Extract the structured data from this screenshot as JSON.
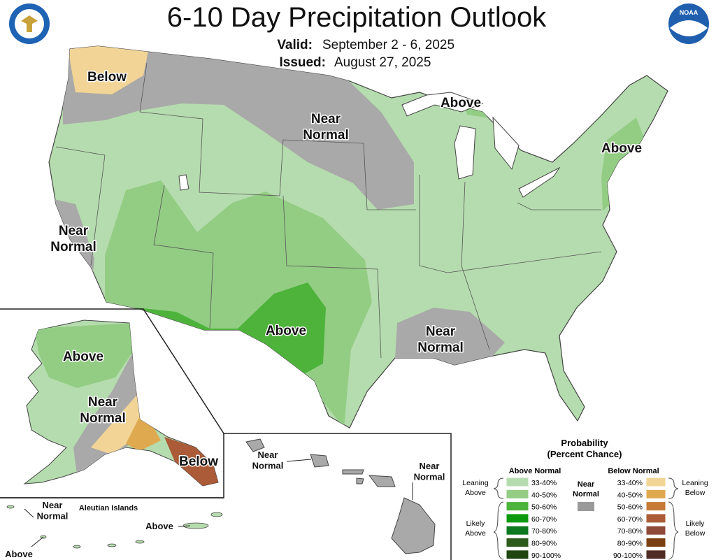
{
  "header": {
    "title": "6-10 Day Precipitation Outlook",
    "valid_label": "Valid:",
    "valid": "September 2 - 6, 2025",
    "issued_label": "Issued:",
    "issued": "August 27, 2025",
    "logo_text": "NOAA"
  },
  "map_labels": {
    "conus": [
      {
        "lines": [
          "Below"
        ]
      },
      {
        "lines": [
          "Near",
          "Normal"
        ]
      },
      {
        "lines": [
          "Above"
        ]
      },
      {
        "lines": [
          "Above"
        ]
      },
      {
        "lines": [
          "Near",
          "Normal"
        ]
      },
      {
        "lines": [
          "Above"
        ]
      },
      {
        "lines": [
          "Near",
          "Normal"
        ]
      }
    ],
    "alaska": [
      {
        "lines": [
          "Above"
        ]
      },
      {
        "lines": [
          "Near",
          "Normal"
        ]
      },
      {
        "lines": [
          "Below"
        ]
      }
    ],
    "aleutians": [
      {
        "lines": [
          "Near",
          "Normal"
        ]
      },
      {
        "lines": [
          "Aleutian Islands"
        ]
      },
      {
        "lines": [
          "Above"
        ]
      },
      {
        "lines": [
          "Above"
        ]
      }
    ],
    "hawaii": [
      {
        "lines": [
          "Near",
          "Normal"
        ]
      },
      {
        "lines": [
          "Near",
          "Normal"
        ]
      }
    ]
  },
  "legend": {
    "title_lines": [
      "Probability",
      "(Percent Chance)"
    ],
    "above": {
      "header": "Above Normal",
      "bins": [
        {
          "label": "33-40%",
          "color": "#b5dcae"
        },
        {
          "label": "40-50%",
          "color": "#93cd84"
        },
        {
          "label": "50-60%",
          "color": "#4db33b"
        },
        {
          "label": "60-70%",
          "color": "#0c9a0c"
        },
        {
          "label": "70-80%",
          "color": "#0d7a1f"
        },
        {
          "label": "80-90%",
          "color": "#2e5b1b"
        },
        {
          "label": "90-100%",
          "color": "#1f4510"
        }
      ],
      "leaning_lines": [
        "Leaning",
        "Above"
      ],
      "likely_lines": [
        "Likely",
        "Above"
      ]
    },
    "near": {
      "lines": [
        "Near",
        "Normal"
      ],
      "color": "#9a9a9a"
    },
    "below": {
      "header": "Below Normal",
      "bins": [
        {
          "label": "33-40%",
          "color": "#f2d596"
        },
        {
          "label": "40-50%",
          "color": "#dfa94f"
        },
        {
          "label": "50-60%",
          "color": "#c57a36"
        },
        {
          "label": "60-70%",
          "color": "#ab5b37"
        },
        {
          "label": "70-80%",
          "color": "#8f4a38"
        },
        {
          "label": "80-90%",
          "color": "#7a3f10"
        },
        {
          "label": "90-100%",
          "color": "#4f2b23"
        }
      ],
      "leaning_lines": [
        "Leaning",
        "Below"
      ],
      "likely_lines": [
        "Likely",
        "Below"
      ]
    }
  }
}
